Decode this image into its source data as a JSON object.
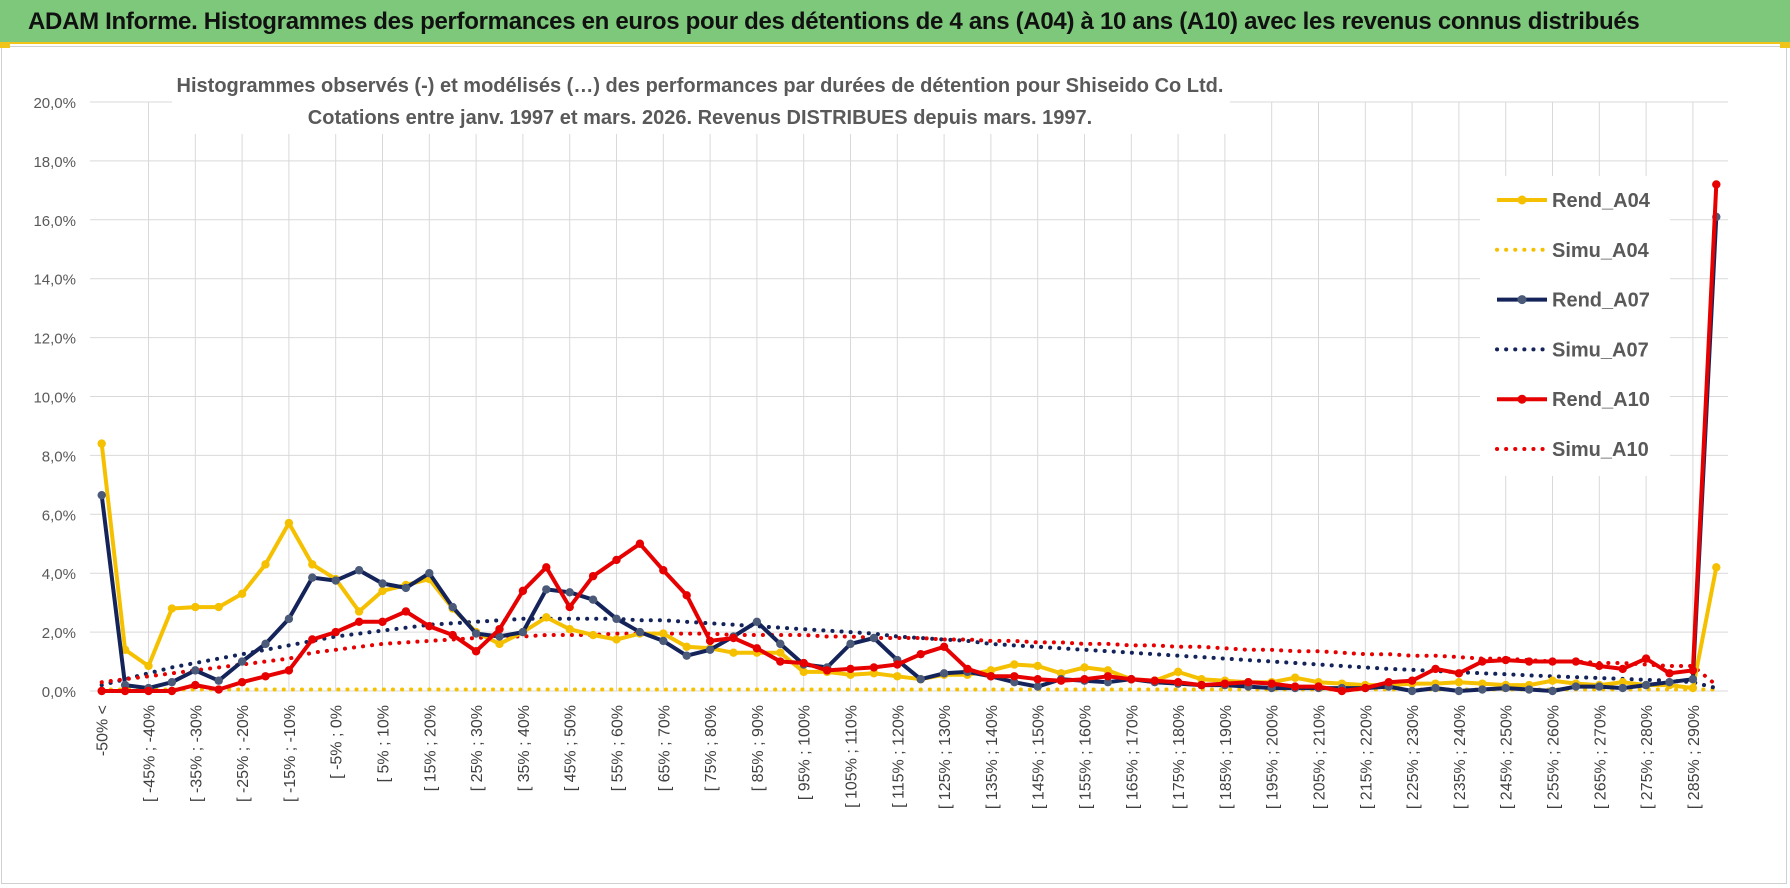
{
  "banner": {
    "title": "ADAM Informe. Histogrammes des performances en euros pour des détentions de 4 ans (A04) à 10 ans (A10) avec les revenus connus distribués"
  },
  "chart_data": {
    "type": "line",
    "title_line1": "Histogrammes observés (-) et modélisés (…) des performances par durées de détention pour Shiseido Co Ltd.",
    "title_line2": "Cotations entre janv. 1997 et mars. 2026.  Revenus DISTRIBUES depuis mars. 1997.",
    "ylim": [
      0,
      20
    ],
    "yticks": [
      "0,0%",
      "2,0%",
      "4,0%",
      "6,0%",
      "8,0%",
      "10,0%",
      "12,0%",
      "14,0%",
      "16,0%",
      "18,0%",
      "20,0%"
    ],
    "grid": true,
    "legend_position": "right",
    "x_labels": [
      "-50% <",
      "[ -45% ; -40%",
      "[ -35% ; -30%",
      "[ -25% ; -20%",
      "[ -15% ; -10%",
      "[ -5% ; 0%",
      "[ 5% ; 10%",
      "[ 15% ; 20%",
      "[ 25% ; 30%",
      "[ 35% ; 40%",
      "[ 45% ; 50%",
      "[ 55% ; 60%",
      "[ 65% ; 70%",
      "[ 75% ; 80%",
      "[ 85% ; 90%",
      "[ 95% ; 100%",
      "[ 105% ; 110%",
      "[ 115% ; 120%",
      "[ 125% ; 130%",
      "[ 135% ; 140%",
      "[ 145% ; 150%",
      "[ 155% ; 160%",
      "[ 165% ; 170%",
      "[ 175% ; 180%",
      "[ 185% ; 190%",
      "[ 195% ; 200%",
      "[ 205% ; 210%",
      "[ 215% ; 220%",
      "[ 225% ; 230%",
      "[ 235% ; 240%",
      "[ 245% ; 250%",
      "[ 255% ; 260%",
      "[ 265% ; 270%",
      "[ 275% ; 280%",
      "[ 285% ; 290%"
    ],
    "categories_count": 70,
    "series": [
      {
        "name": "Rend_A04",
        "style": "solid",
        "color": "#f5c000",
        "values": [
          8.4,
          1.4,
          0.85,
          2.8,
          2.85,
          2.85,
          3.3,
          4.3,
          5.7,
          4.3,
          3.8,
          2.7,
          3.4,
          3.6,
          3.8,
          2.8,
          2.0,
          1.6,
          2.0,
          2.5,
          2.1,
          1.9,
          1.75,
          1.95,
          1.95,
          1.5,
          1.45,
          1.3,
          1.3,
          1.3,
          0.65,
          0.65,
          0.55,
          0.6,
          0.5,
          0.4,
          0.55,
          0.55,
          0.7,
          0.9,
          0.85,
          0.6,
          0.8,
          0.7,
          0.4,
          0.35,
          0.65,
          0.4,
          0.35,
          0.3,
          0.3,
          0.45,
          0.3,
          0.25,
          0.2,
          0.2,
          0.25,
          0.25,
          0.3,
          0.25,
          0.2,
          0.2,
          0.35,
          0.25,
          0.2,
          0.3,
          0.2,
          0.2,
          0.1,
          4.2
        ]
      },
      {
        "name": "Simu_A04",
        "style": "dotted",
        "color": "#f5c000",
        "values": [
          0.05,
          0.05,
          0.05,
          0.05,
          0.05,
          0.05,
          0.05,
          0.05,
          0.05,
          0.05,
          0.05,
          0.05,
          0.05,
          0.05,
          0.05,
          0.05,
          0.05,
          0.05,
          0.05,
          0.05,
          0.05,
          0.05,
          0.05,
          0.05,
          0.05,
          0.05,
          0.05,
          0.05,
          0.05,
          0.05,
          0.05,
          0.05,
          0.05,
          0.05,
          0.05,
          0.05,
          0.05,
          0.05,
          0.05,
          0.05,
          0.05,
          0.05,
          0.05,
          0.05,
          0.05,
          0.05,
          0.05,
          0.05,
          0.05,
          0.05,
          0.05,
          0.05,
          0.05,
          0.05,
          0.05,
          0.05,
          0.05,
          0.05,
          0.05,
          0.05,
          0.05,
          0.05,
          0.05,
          0.05,
          0.05,
          0.05,
          0.05,
          0.05,
          0.05,
          0.05
        ]
      },
      {
        "name": "Rend_A07",
        "style": "solid",
        "color": "#14245a",
        "values": [
          6.65,
          0.2,
          0.1,
          0.3,
          0.7,
          0.35,
          1.0,
          1.6,
          2.45,
          3.85,
          3.75,
          4.1,
          3.65,
          3.5,
          4.0,
          2.85,
          1.95,
          1.85,
          2.0,
          3.45,
          3.35,
          3.1,
          2.45,
          2.0,
          1.7,
          1.2,
          1.4,
          1.85,
          2.35,
          1.6,
          0.9,
          0.8,
          1.6,
          1.8,
          1.05,
          0.4,
          0.6,
          0.65,
          0.5,
          0.3,
          0.15,
          0.4,
          0.35,
          0.3,
          0.4,
          0.3,
          0.25,
          0.2,
          0.2,
          0.15,
          0.1,
          0.1,
          0.1,
          0.1,
          0.1,
          0.15,
          0.0,
          0.1,
          0.0,
          0.05,
          0.1,
          0.05,
          0.0,
          0.15,
          0.15,
          0.1,
          0.2,
          0.3,
          0.4,
          16.1
        ]
      },
      {
        "name": "Simu_A07",
        "style": "dotted",
        "color": "#14245a",
        "values": [
          0.2,
          0.4,
          0.6,
          0.8,
          0.95,
          1.1,
          1.25,
          1.4,
          1.55,
          1.7,
          1.85,
          1.95,
          2.05,
          2.15,
          2.25,
          2.3,
          2.35,
          2.4,
          2.45,
          2.45,
          2.45,
          2.45,
          2.45,
          2.4,
          2.4,
          2.35,
          2.3,
          2.25,
          2.2,
          2.15,
          2.1,
          2.05,
          2.0,
          1.95,
          1.85,
          1.8,
          1.75,
          1.7,
          1.6,
          1.55,
          1.5,
          1.45,
          1.4,
          1.35,
          1.3,
          1.25,
          1.2,
          1.15,
          1.1,
          1.05,
          1.0,
          0.95,
          0.9,
          0.85,
          0.8,
          0.75,
          0.72,
          0.68,
          0.64,
          0.6,
          0.57,
          0.53,
          0.5,
          0.47,
          0.44,
          0.41,
          0.38,
          0.35,
          0.3,
          0.1
        ]
      },
      {
        "name": "Rend_A10",
        "style": "solid",
        "color": "#e60000",
        "values": [
          0.0,
          0.0,
          0.0,
          0.0,
          0.2,
          0.05,
          0.3,
          0.5,
          0.7,
          1.75,
          2.0,
          2.35,
          2.35,
          2.7,
          2.2,
          1.9,
          1.35,
          2.1,
          3.4,
          4.2,
          2.85,
          3.9,
          4.45,
          5.0,
          4.1,
          3.25,
          1.7,
          1.8,
          1.45,
          1.0,
          0.95,
          0.7,
          0.75,
          0.8,
          0.9,
          1.25,
          1.5,
          0.75,
          0.5,
          0.5,
          0.4,
          0.35,
          0.4,
          0.5,
          0.4,
          0.35,
          0.3,
          0.2,
          0.25,
          0.3,
          0.25,
          0.15,
          0.15,
          0.0,
          0.1,
          0.3,
          0.35,
          0.75,
          0.6,
          1.0,
          1.05,
          1.0,
          1.0,
          1.0,
          0.85,
          0.75,
          1.1,
          0.6,
          0.7,
          17.2
        ]
      },
      {
        "name": "Simu_A10",
        "style": "dotted",
        "color": "#e60000",
        "values": [
          0.3,
          0.4,
          0.5,
          0.6,
          0.7,
          0.8,
          0.9,
          1.0,
          1.1,
          1.3,
          1.4,
          1.5,
          1.6,
          1.65,
          1.7,
          1.75,
          1.8,
          1.85,
          1.85,
          1.9,
          1.9,
          1.9,
          1.95,
          1.95,
          1.95,
          1.95,
          1.95,
          1.9,
          1.9,
          1.9,
          1.9,
          1.85,
          1.85,
          1.8,
          1.8,
          1.8,
          1.75,
          1.75,
          1.7,
          1.7,
          1.65,
          1.65,
          1.6,
          1.6,
          1.55,
          1.55,
          1.5,
          1.5,
          1.45,
          1.4,
          1.4,
          1.35,
          1.35,
          1.3,
          1.25,
          1.25,
          1.2,
          1.2,
          1.15,
          1.1,
          1.1,
          1.05,
          1.0,
          1.0,
          0.95,
          0.95,
          0.9,
          0.85,
          0.85,
          0.2
        ]
      }
    ]
  }
}
